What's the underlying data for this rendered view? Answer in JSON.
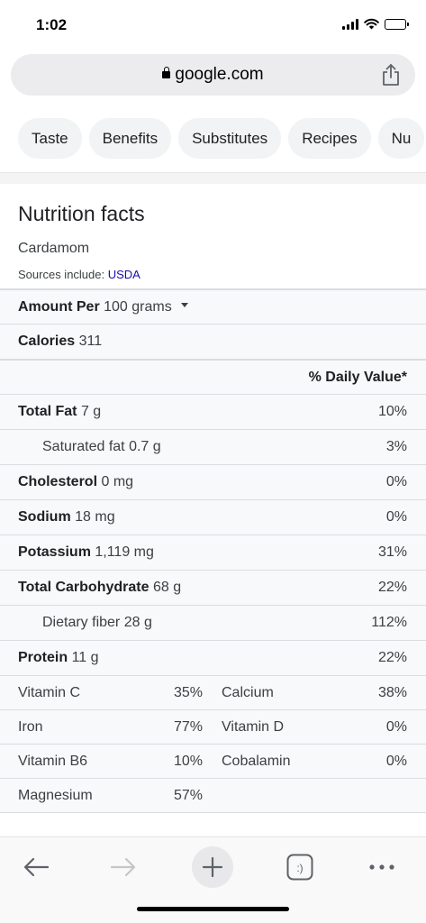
{
  "status_bar": {
    "time": "1:02"
  },
  "url_bar": {
    "domain": "google.com"
  },
  "chips": [
    "Taste",
    "Benefits",
    "Substitutes",
    "Recipes",
    "Nu"
  ],
  "nutrition": {
    "title": "Nutrition facts",
    "food": "Cardamom",
    "sources_prefix": "Sources include: ",
    "sources_link": "USDA",
    "amount_label": "Amount Per",
    "amount_value": "100 grams",
    "calories_label": "Calories",
    "calories_value": "311",
    "daily_value_header": "% Daily Value*",
    "rows": [
      {
        "label": "Total Fat",
        "value": "7 g",
        "pct": "10%",
        "bold": true
      },
      {
        "label": "Saturated fat",
        "value": "0.7 g",
        "pct": "3%",
        "bold": false
      },
      {
        "label": "Cholesterol",
        "value": "0 mg",
        "pct": "0%",
        "bold": true
      },
      {
        "label": "Sodium",
        "value": "18 mg",
        "pct": "0%",
        "bold": true
      },
      {
        "label": "Potassium",
        "value": "1,119 mg",
        "pct": "31%",
        "bold": true
      },
      {
        "label": "Total Carbohydrate",
        "value": "68 g",
        "pct": "22%",
        "bold": true
      },
      {
        "label": "Dietary fiber",
        "value": "28 g",
        "pct": "112%",
        "bold": false
      },
      {
        "label": "Protein",
        "value": "11 g",
        "pct": "22%",
        "bold": true
      }
    ],
    "vitamins": [
      {
        "name1": "Vitamin C",
        "pct1": "35%",
        "name2": "Calcium",
        "pct2": "38%"
      },
      {
        "name1": "Iron",
        "pct1": "77%",
        "name2": "Vitamin D",
        "pct2": "0%"
      },
      {
        "name1": "Vitamin B6",
        "pct1": "10%",
        "name2": "Cobalamin",
        "pct2": "0%"
      },
      {
        "name1": "Magnesium",
        "pct1": "57%",
        "name2": "",
        "pct2": ""
      }
    ]
  },
  "toolbar": {
    "icons": [
      "back-arrow-icon",
      "forward-arrow-icon",
      "plus-icon",
      "tabs-icon",
      "more-icon"
    ],
    "tabs_glyph": ":)"
  },
  "colors": {
    "link": "#1a0dab",
    "chip_bg": "#f1f3f4",
    "url_bar_bg": "#ececee",
    "table_bg": "#f8f9fa"
  }
}
